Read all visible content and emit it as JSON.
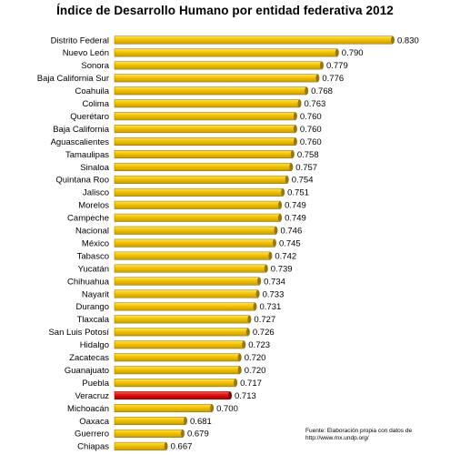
{
  "chart_data": {
    "type": "bar",
    "orientation": "horizontal",
    "title": "Índice de Desarrollo Humano por entidad federativa 2012",
    "categories": [
      "Distrito Federal",
      "Nuevo León",
      "Sonora",
      "Baja California Sur",
      "Coahuila",
      "Colima",
      "Querétaro",
      "Baja California",
      "Aguascalientes",
      "Tamaulipas",
      "Sinaloa",
      "Quintana Roo",
      "Jalisco",
      "Morelos",
      "Campeche",
      "Nacional",
      "México",
      "Tabasco",
      "Yucatán",
      "Chihuahua",
      "Nayarit",
      "Durango",
      "Tlaxcala",
      "San Luis Potosí",
      "Hidalgo",
      "Zacatecas",
      "Guanajuato",
      "Puebla",
      "Veracruz",
      "Michoacán",
      "Oaxaca",
      "Guerrero",
      "Chiapas"
    ],
    "values": [
      0.83,
      0.79,
      0.779,
      0.776,
      0.768,
      0.763,
      0.76,
      0.76,
      0.76,
      0.758,
      0.757,
      0.754,
      0.751,
      0.749,
      0.749,
      0.746,
      0.745,
      0.742,
      0.739,
      0.734,
      0.733,
      0.731,
      0.727,
      0.726,
      0.723,
      0.72,
      0.72,
      0.717,
      0.713,
      0.7,
      0.681,
      0.679,
      0.667
    ],
    "value_labels": [
      "0.830",
      "0.790",
      "0.779",
      "0.776",
      "0.768",
      "0.763",
      "0.760",
      "0.760",
      "0.760",
      "0.758",
      "0.757",
      "0.754",
      "0.751",
      "0.749",
      "0.749",
      "0.746",
      "0.745",
      "0.742",
      "0.739",
      "0.734",
      "0.733",
      "0.731",
      "0.727",
      "0.726",
      "0.723",
      "0.720",
      "0.720",
      "0.717",
      "0.713",
      "0.700",
      "0.681",
      "0.679",
      "0.667"
    ],
    "highlight_category": "Veracruz",
    "colors": {
      "bar": "#f2c200",
      "bar_highlight": "#dd1111",
      "bar_edge": "#8a6d00"
    },
    "grid": false,
    "legend": "none"
  },
  "source_note": "Fuente: Elaboración propia con datos de http://www.mx.undp.org/"
}
